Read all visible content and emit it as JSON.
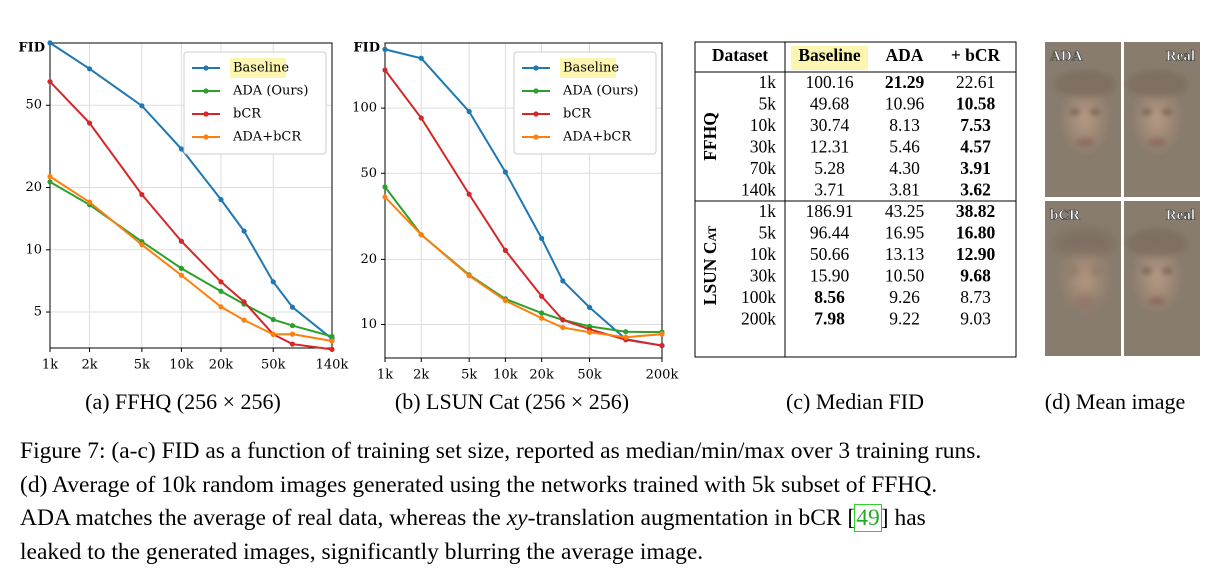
{
  "chart_data": [
    {
      "type": "line",
      "title": "(a) FFHQ (256 × 256)",
      "ylabel": "FID",
      "xscale": "log",
      "yscale": "log",
      "grid": true,
      "legend": "upper right",
      "x": [
        1000,
        2000,
        5000,
        10000,
        20000,
        30000,
        50000,
        70000,
        140000
      ],
      "xlim": [
        1000,
        140000
      ],
      "ylim": [
        3.35,
        100
      ],
      "xticks": [
        {
          "value": 1000,
          "label": "1k"
        },
        {
          "value": 2000,
          "label": "2k"
        },
        {
          "value": 5000,
          "label": "5k"
        },
        {
          "value": 10000,
          "label": "10k"
        },
        {
          "value": 20000,
          "label": "20k"
        },
        {
          "value": 50000,
          "label": "50k"
        },
        {
          "value": 140000,
          "label": "140k"
        }
      ],
      "yticks": [
        5,
        10,
        20,
        50
      ],
      "series": [
        {
          "name": "Baseline",
          "color": "#1f77b4",
          "highlight": true,
          "values": [
            100.16,
            75,
            49.68,
            30.74,
            17.5,
            12.31,
            7,
            5.28,
            3.71
          ]
        },
        {
          "name": "ADA (Ours)",
          "color": "#2ca02c",
          "values": [
            21.29,
            16.5,
            10.96,
            8.13,
            6.3,
            5.46,
            4.6,
            4.3,
            3.81
          ]
        },
        {
          "name": "bCR",
          "color": "#d62728",
          "values": [
            65,
            41,
            18.5,
            11,
            7,
            5.6,
            3.9,
            3.5,
            3.3
          ]
        },
        {
          "name": "ADA+bCR",
          "color": "#ff7f0e",
          "values": [
            22.61,
            17,
            10.58,
            7.53,
            5.3,
            4.57,
            3.9,
            3.91,
            3.62
          ]
        }
      ]
    },
    {
      "type": "line",
      "title": "(b) LSUN Cat (256 × 256)",
      "ylabel": "FID",
      "xscale": "log",
      "yscale": "log",
      "grid": true,
      "legend": "upper right",
      "x": [
        1000,
        2000,
        5000,
        10000,
        20000,
        30000,
        50000,
        100000,
        200000
      ],
      "xlim": [
        1000,
        200000
      ],
      "ylim": [
        7,
        200
      ],
      "xticks": [
        {
          "value": 1000,
          "label": "1k"
        },
        {
          "value": 2000,
          "label": "2k"
        },
        {
          "value": 5000,
          "label": "5k"
        },
        {
          "value": 10000,
          "label": "10k"
        },
        {
          "value": 20000,
          "label": "20k"
        },
        {
          "value": 50000,
          "label": "50k"
        },
        {
          "value": 200000,
          "label": "200k"
        }
      ],
      "yticks": [
        10,
        20,
        50,
        100
      ],
      "series": [
        {
          "name": "Baseline",
          "color": "#1f77b4",
          "highlight": true,
          "values": [
            186.91,
            170,
            96.44,
            50.66,
            25,
            15.9,
            12,
            8.56,
            7.98
          ]
        },
        {
          "name": "ADA (Ours)",
          "color": "#2ca02c",
          "values": [
            43.25,
            26,
            16.95,
            13.13,
            11.3,
            10.5,
            9.8,
            9.26,
            9.22
          ]
        },
        {
          "name": "bCR",
          "color": "#d62728",
          "values": [
            150,
            90,
            40,
            22,
            13.5,
            10.5,
            9.5,
            8.5,
            8
          ]
        },
        {
          "name": "ADA+bCR",
          "color": "#ff7f0e",
          "values": [
            38.82,
            26,
            16.8,
            12.9,
            10.7,
            9.68,
            9.2,
            8.73,
            9.03
          ]
        }
      ]
    }
  ],
  "table": {
    "caption": "(c) Median FID",
    "header": [
      "Dataset",
      "Baseline",
      "ADA",
      "+ bCR"
    ],
    "header_highlight": 1,
    "groups": [
      {
        "name": "FFHQ",
        "rows": [
          [
            "1k",
            "100.16",
            "21.29",
            "22.61"
          ],
          [
            "5k",
            "49.68",
            "10.96",
            "10.58"
          ],
          [
            "10k",
            "30.74",
            "8.13",
            "7.53"
          ],
          [
            "30k",
            "12.31",
            "5.46",
            "4.57"
          ],
          [
            "70k",
            "5.28",
            "4.30",
            "3.91"
          ],
          [
            "140k",
            "3.71",
            "3.81",
            "3.62"
          ]
        ],
        "bold": [
          2,
          3,
          3,
          3,
          3,
          3
        ]
      },
      {
        "name": "LSUN Cat",
        "rows": [
          [
            "1k",
            "186.91",
            "43.25",
            "38.82"
          ],
          [
            "5k",
            "96.44",
            "16.95",
            "16.80"
          ],
          [
            "10k",
            "50.66",
            "13.13",
            "12.90"
          ],
          [
            "30k",
            "15.90",
            "10.50",
            "9.68"
          ],
          [
            "100k",
            "8.56",
            "9.26",
            "8.73"
          ],
          [
            "200k",
            "7.98",
            "9.22",
            "9.03"
          ]
        ],
        "bold": [
          3,
          3,
          3,
          3,
          1,
          1
        ]
      }
    ]
  },
  "mean_image": {
    "caption": "(d) Mean image",
    "panels": [
      {
        "left": "ADA",
        "right": "Real"
      },
      {
        "left": "bCR",
        "right": "Real"
      }
    ]
  },
  "figure_caption": {
    "lines": [
      [
        {
          "text": "Figure 7: (a-c) FID as a function of training set size, reported as median/min/max over 3 training runs."
        }
      ],
      [
        {
          "text": "(d) Average of 10k random images generated using the networks trained with 5k subset of FFHQ."
        }
      ],
      [
        {
          "text": "ADA matches the average of real data, whereas the "
        },
        {
          "text": "xy",
          "italic": true
        },
        {
          "text": "-translation augmentation in bCR ["
        },
        {
          "text": "49",
          "cite": true
        },
        {
          "text": "] has"
        }
      ],
      [
        {
          "text": "leaked to the generated images, significantly blurring the average image."
        }
      ]
    ]
  }
}
